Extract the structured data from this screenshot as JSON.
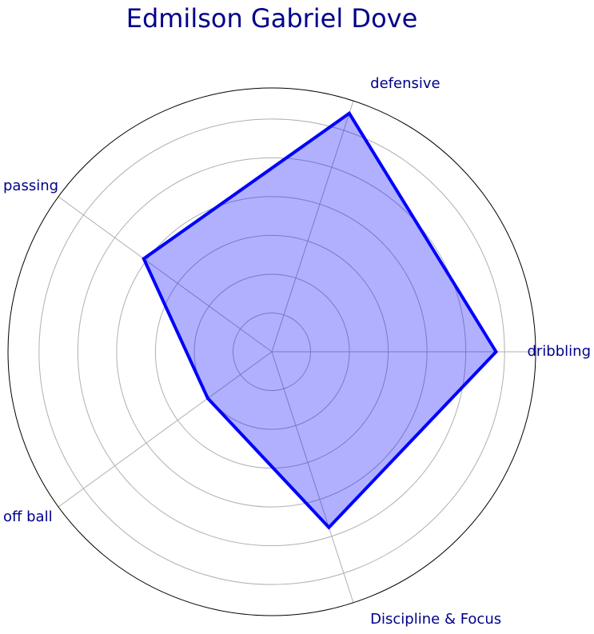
{
  "chart_data": {
    "type": "radar",
    "title": "Edmilson Gabriel Dove",
    "categories": [
      "dribbling",
      "defensive",
      "passing",
      "off ball",
      "Discipline & Focus"
    ],
    "series": [
      {
        "values": [
          85,
          95,
          60,
          30,
          70
        ]
      }
    ],
    "rlim": [
      0,
      100
    ],
    "grid": true,
    "colors": {
      "title": "#00008b",
      "labels": "#00008b",
      "line": "#0000ff",
      "fill": "#0000ff",
      "fill_opacity": 0.31,
      "grid": "#b0b0b0",
      "outer": "#000000"
    }
  }
}
